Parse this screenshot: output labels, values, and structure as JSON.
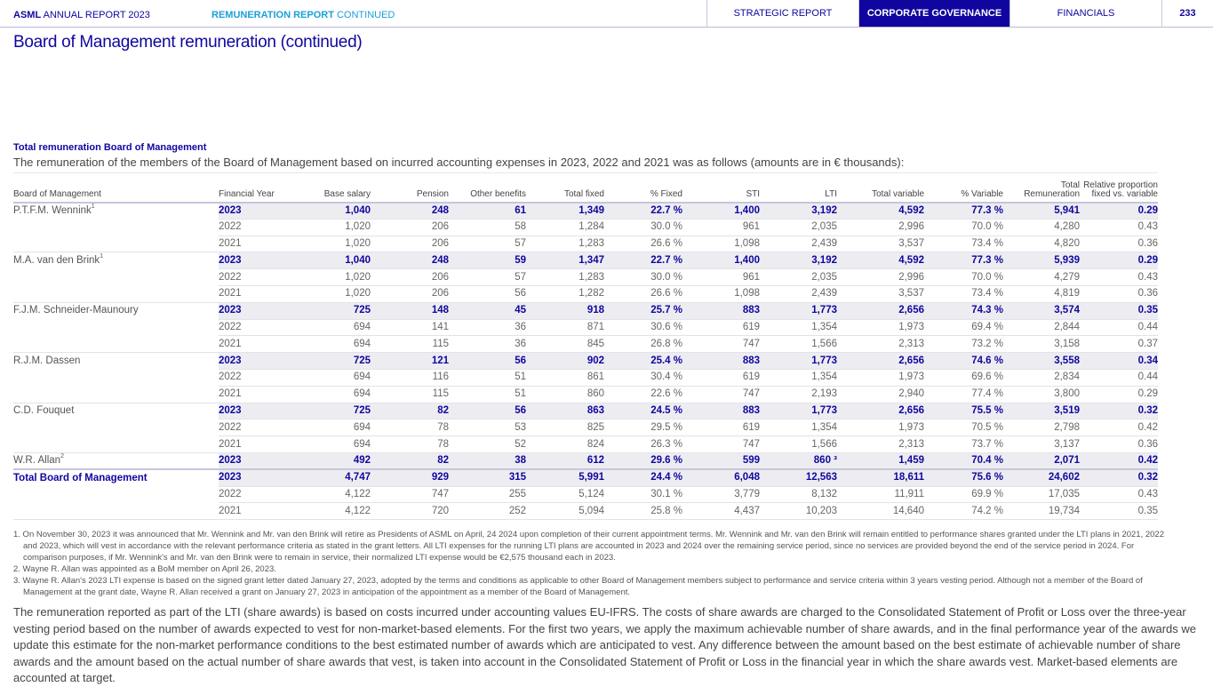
{
  "header": {
    "brand": "ASML",
    "report": "ANNUAL REPORT 2023",
    "section": "REMUNERATION REPORT",
    "section_suffix": "CONTINUED",
    "nav": [
      "STRATEGIC REPORT",
      "CORPORATE GOVERNANCE",
      "FINANCIALS"
    ],
    "active_nav": "CORPORATE GOVERNANCE",
    "page": "233"
  },
  "title": "Board of Management remuneration (continued)",
  "section_title": "Total remuneration Board of Management",
  "intro": "The remuneration of the members of the Board of Management based on incurred accounting expenses in 2023, 2022 and 2021 was as follows (amounts are in € thousands):",
  "table": {
    "columns": [
      "Board of Management",
      "Financial Year",
      "Base salary",
      "Pension",
      "Other benefits",
      "Total fixed",
      "% Fixed",
      "STI",
      "LTI",
      "Total variable",
      "% Variable",
      "Total Remuneration",
      "Relative proportion fixed vs. variable"
    ],
    "groups": [
      {
        "name": "P.T.F.M. Wennink",
        "sup": "1",
        "rows": [
          [
            "2023",
            "1,040",
            "248",
            "61",
            "1,349",
            "22.7 %",
            "1,400",
            "3,192",
            "4,592",
            "77.3 %",
            "5,941",
            "0.29"
          ],
          [
            "2022",
            "1,020",
            "206",
            "58",
            "1,284",
            "30.0 %",
            "961",
            "2,035",
            "2,996",
            "70.0 %",
            "4,280",
            "0.43"
          ],
          [
            "2021",
            "1,020",
            "206",
            "57",
            "1,283",
            "26.6 %",
            "1,098",
            "2,439",
            "3,537",
            "73.4 %",
            "4,820",
            "0.36"
          ]
        ]
      },
      {
        "name": "M.A. van den Brink",
        "sup": "1",
        "rows": [
          [
            "2023",
            "1,040",
            "248",
            "59",
            "1,347",
            "22.7 %",
            "1,400",
            "3,192",
            "4,592",
            "77.3 %",
            "5,939",
            "0.29"
          ],
          [
            "2022",
            "1,020",
            "206",
            "57",
            "1,283",
            "30.0 %",
            "961",
            "2,035",
            "2,996",
            "70.0 %",
            "4,279",
            "0.43"
          ],
          [
            "2021",
            "1,020",
            "206",
            "56",
            "1,282",
            "26.6 %",
            "1,098",
            "2,439",
            "3,537",
            "73.4 %",
            "4,819",
            "0.36"
          ]
        ]
      },
      {
        "name": "F.J.M. Schneider-Maunoury",
        "sup": "",
        "rows": [
          [
            "2023",
            "725",
            "148",
            "45",
            "918",
            "25.7 %",
            "883",
            "1,773",
            "2,656",
            "74.3 %",
            "3,574",
            "0.35"
          ],
          [
            "2022",
            "694",
            "141",
            "36",
            "871",
            "30.6 %",
            "619",
            "1,354",
            "1,973",
            "69.4 %",
            "2,844",
            "0.44"
          ],
          [
            "2021",
            "694",
            "115",
            "36",
            "845",
            "26.8 %",
            "747",
            "1,566",
            "2,313",
            "73.2 %",
            "3,158",
            "0.37"
          ]
        ]
      },
      {
        "name": "R.J.M. Dassen",
        "sup": "",
        "rows": [
          [
            "2023",
            "725",
            "121",
            "56",
            "902",
            "25.4 %",
            "883",
            "1,773",
            "2,656",
            "74.6 %",
            "3,558",
            "0.34"
          ],
          [
            "2022",
            "694",
            "116",
            "51",
            "861",
            "30.4 %",
            "619",
            "1,354",
            "1,973",
            "69.6 %",
            "2,834",
            "0.44"
          ],
          [
            "2021",
            "694",
            "115",
            "51",
            "860",
            "22.6 %",
            "747",
            "2,193",
            "2,940",
            "77.4 %",
            "3,800",
            "0.29"
          ]
        ]
      },
      {
        "name": "C.D. Fouquet",
        "sup": "",
        "rows": [
          [
            "2023",
            "725",
            "82",
            "56",
            "863",
            "24.5 %",
            "883",
            "1,773",
            "2,656",
            "75.5 %",
            "3,519",
            "0.32"
          ],
          [
            "2022",
            "694",
            "78",
            "53",
            "825",
            "29.5 %",
            "619",
            "1,354",
            "1,973",
            "70.5 %",
            "2,798",
            "0.42"
          ],
          [
            "2021",
            "694",
            "78",
            "52",
            "824",
            "26.3 %",
            "747",
            "1,566",
            "2,313",
            "73.7 %",
            "3,137",
            "0.36"
          ]
        ]
      },
      {
        "name": "W.R. Allan",
        "sup": "2",
        "rows": [
          [
            "2023",
            "492",
            "82",
            "38",
            "612",
            "29.6 %",
            "599",
            "860 ³",
            "1,459",
            "70.4 %",
            "2,071",
            "0.42"
          ]
        ]
      },
      {
        "name": "Total Board of Management",
        "sup": "",
        "total": true,
        "rows": [
          [
            "2023",
            "4,747",
            "929",
            "315",
            "5,991",
            "24.4 %",
            "6,048",
            "12,563",
            "18,611",
            "75.6 %",
            "24,602",
            "0.32"
          ],
          [
            "2022",
            "4,122",
            "747",
            "255",
            "5,124",
            "30.1 %",
            "3,779",
            "8,132",
            "11,911",
            "69.9 %",
            "17,035",
            "0.43"
          ],
          [
            "2021",
            "4,122",
            "720",
            "252",
            "5,094",
            "25.8 %",
            "4,437",
            "10,203",
            "14,640",
            "74.2 %",
            "19,734",
            "0.35"
          ]
        ]
      }
    ]
  },
  "footnotes": [
    "1. On November 30, 2023 it was announced that Mr. Wennink and Mr. van den Brink will retire as Presidents of ASML on April, 24 2024 upon completion of their current appointment terms. Mr. Wennink and Mr. van den Brink will remain entitled to performance shares granted under the LTI plans in 2021, 2022 and 2023, which will vest in accordance with the relevant performance criteria as stated in the grant letters. All LTI expenses for the running LTI plans are accounted in 2023 and 2024 over the remaining service period, since no services are provided beyond the end of the service period in 2024. For comparison purposes, if Mr. Wennink's and Mr. van den Brink were to remain in service, their normalized LTI expense would be €2,575 thousand each in 2023.",
    "2. Wayne R. Allan was appointed as a BoM member on April 26, 2023.",
    "3. Wayne R. Allan's 2023 LTI expense is based on the signed grant letter dated January 27, 2023, adopted by the terms and conditions as applicable to other Board of Management members subject to performance and service criteria within 3 years vesting period. Although not a member of the Board of Management at the grant date, Wayne R. Allan received a grant on January 27, 2023 in anticipation of the appointment as a member of the Board of Management."
  ],
  "paragraph": "The remuneration reported as part of the LTI (share awards) is based on costs incurred under accounting values EU-IFRS. The costs of share awards are charged to the Consolidated Statement of Profit or Loss over the three-year vesting period based on the number of awards expected to vest for non-market-based elements. For the first two years, we apply the maximum achievable number of share awards, and in the final performance year of the awards we update this estimate for the non-market performance conditions to the best estimated number of awards which are anticipated to vest. Any difference between the amount based on the best estimate of achievable number of share awards and the amount based on the actual number of share awards that vest, is taken into account in the Consolidated Statement of Profit or Loss in the financial year in which the share awards vest. Market-based elements are accounted at target."
}
